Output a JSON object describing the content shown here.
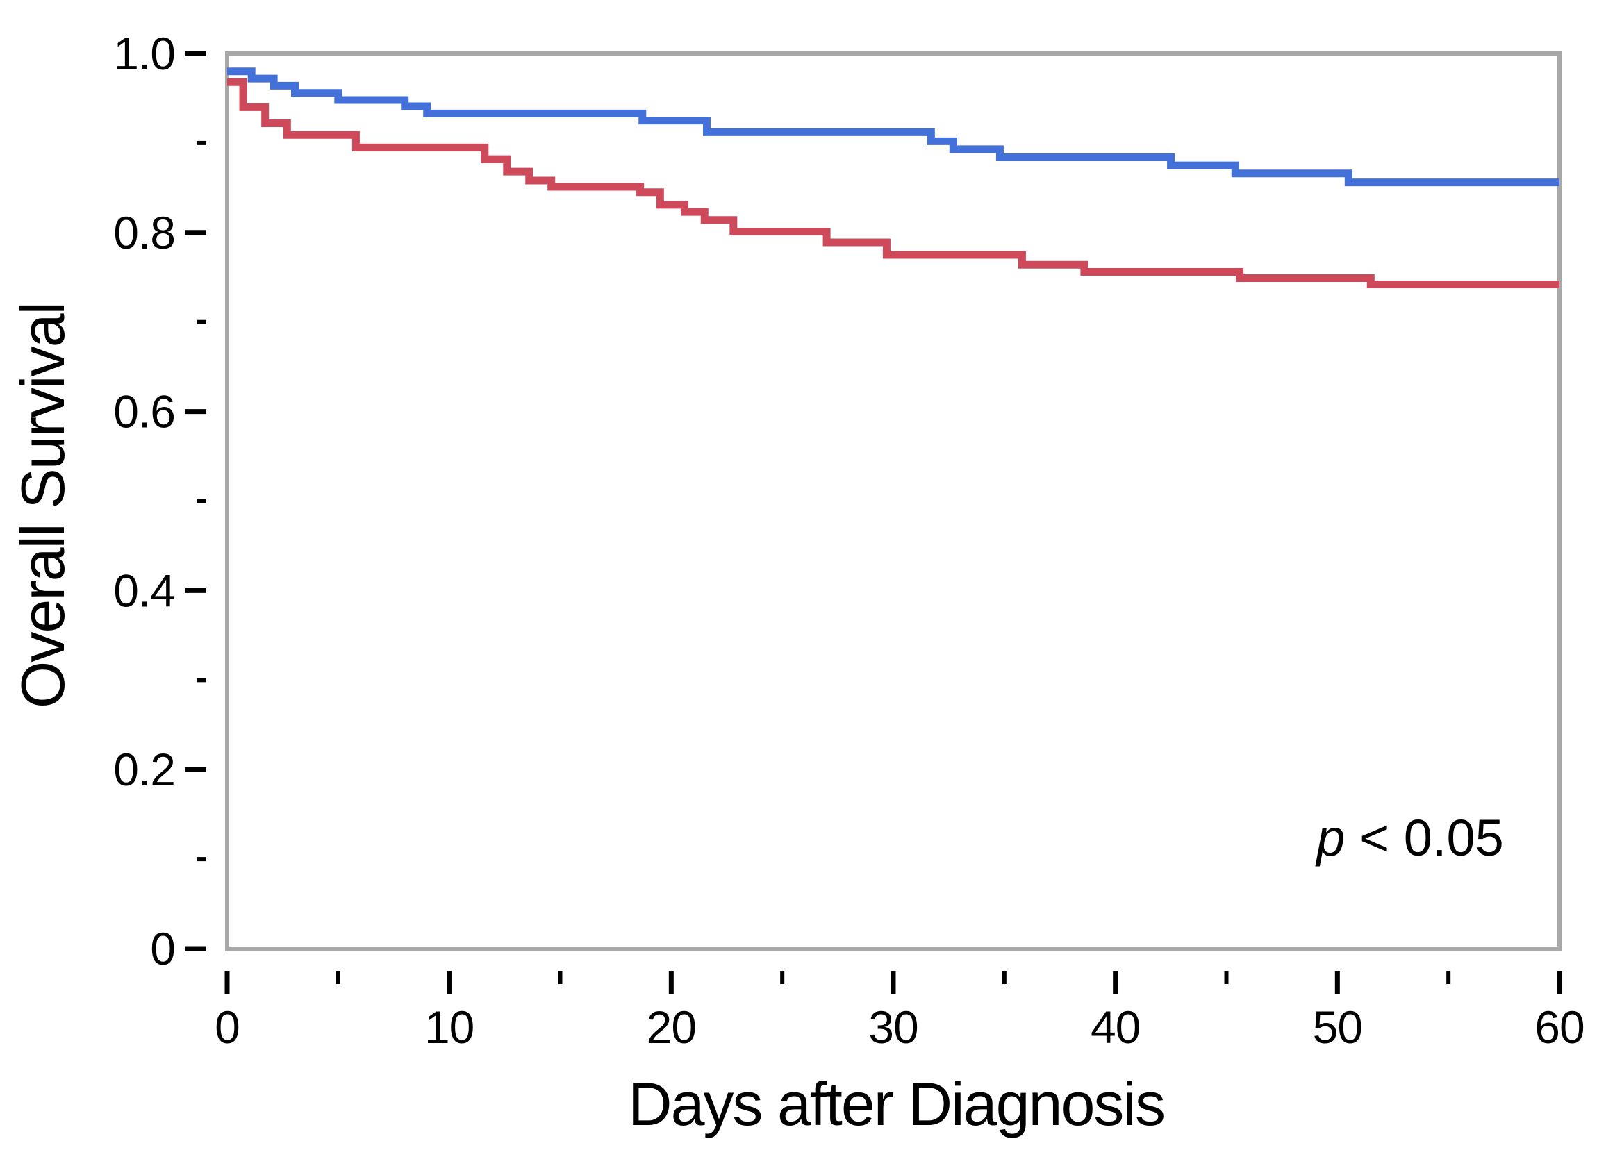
{
  "chart_data": {
    "type": "line",
    "variant": "kaplan_meier_step_curves",
    "title": "",
    "xlabel": "Days after Diagnosis",
    "ylabel": "Overall Survival",
    "xlim": [
      0,
      60
    ],
    "ylim": [
      0,
      1.0
    ],
    "grid": false,
    "legend": "none",
    "x_major_ticks": [
      0,
      10,
      20,
      30,
      40,
      50,
      60
    ],
    "x_minor_ticks": [
      5,
      15,
      25,
      35,
      45,
      55
    ],
    "y_major_ticks": [
      {
        "value": 1.0,
        "label": "1.0"
      },
      {
        "value": 0.8,
        "label": "0.8"
      },
      {
        "value": 0.6,
        "label": "0.6"
      },
      {
        "value": 0.4,
        "label": "0.4"
      },
      {
        "value": 0.2,
        "label": "0.2"
      },
      {
        "value": 0.0,
        "label": "0"
      }
    ],
    "y_minor_ticks": [
      0.9,
      0.7,
      0.5,
      0.3,
      0.1
    ],
    "annotation": {
      "italic_part": "p",
      "value_part": " < 0.05"
    },
    "colors": {
      "series_blue": "#4471d9",
      "series_red": "#ce4a5a",
      "frame": "#a8a8a8",
      "text": "#000000"
    },
    "series": [
      {
        "name": "survival-curve-blue",
        "color_key": "series_blue",
        "start": [
          0,
          0.98
        ],
        "steps": [
          [
            1.1,
            0.972
          ],
          [
            2.1,
            0.964
          ],
          [
            3.05,
            0.956
          ],
          [
            5.0,
            0.948
          ],
          [
            8.0,
            0.941
          ],
          [
            9.0,
            0.933
          ],
          [
            18.7,
            0.925
          ],
          [
            21.6,
            0.912
          ],
          [
            31.7,
            0.902
          ],
          [
            32.7,
            0.893
          ],
          [
            34.8,
            0.884
          ],
          [
            42.5,
            0.875
          ],
          [
            45.4,
            0.866
          ],
          [
            50.5,
            0.856
          ]
        ],
        "end_day": 60,
        "end_value": 0.856
      },
      {
        "name": "survival-curve-red",
        "color_key": "series_red",
        "start": [
          0,
          0.968
        ],
        "steps": [
          [
            0.72,
            0.94
          ],
          [
            1.71,
            0.922
          ],
          [
            2.7,
            0.909
          ],
          [
            5.8,
            0.895
          ],
          [
            11.6,
            0.882
          ],
          [
            12.6,
            0.868
          ],
          [
            13.6,
            0.858
          ],
          [
            14.6,
            0.851
          ],
          [
            18.6,
            0.845
          ],
          [
            19.5,
            0.831
          ],
          [
            20.6,
            0.823
          ],
          [
            21.5,
            0.814
          ],
          [
            22.8,
            0.801
          ],
          [
            27.0,
            0.789
          ],
          [
            29.7,
            0.775
          ],
          [
            35.8,
            0.764
          ],
          [
            38.6,
            0.756
          ],
          [
            45.6,
            0.749
          ],
          [
            51.5,
            0.742
          ]
        ],
        "end_day": 60,
        "end_value": 0.742
      }
    ]
  }
}
